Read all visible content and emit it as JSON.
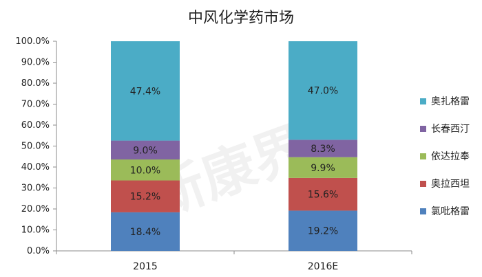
{
  "chart_data": {
    "type": "bar",
    "stacked": true,
    "title": "中风化学药市场",
    "categories": [
      "2015",
      "2016E"
    ],
    "ylim": [
      0,
      100
    ],
    "yticks": [
      "0.0%",
      "10.0%",
      "20.0%",
      "30.0%",
      "40.0%",
      "50.0%",
      "60.0%",
      "70.0%",
      "80.0%",
      "90.0%",
      "100.0%"
    ],
    "series": [
      {
        "name": "氯吡格雷",
        "values": [
          18.4,
          19.2
        ],
        "labels": [
          "18.4%",
          "19.2%"
        ],
        "color": "#4f81bd"
      },
      {
        "name": "奥拉西坦",
        "values": [
          15.2,
          15.6
        ],
        "labels": [
          "15.2%",
          "15.6%"
        ],
        "color": "#c0504d"
      },
      {
        "name": "依达拉奉",
        "values": [
          10.0,
          9.9
        ],
        "labels": [
          "10.0%",
          "9.9%"
        ],
        "color": "#9bbb59"
      },
      {
        "name": "长春西汀",
        "values": [
          9.0,
          8.3
        ],
        "labels": [
          "9.0%",
          "8.3%"
        ],
        "color": "#8064a2"
      },
      {
        "name": "奥扎格雷",
        "values": [
          47.4,
          47.0
        ],
        "labels": [
          "47.4%",
          "47.0%"
        ],
        "color": "#4bacc6"
      }
    ],
    "legend_position": "right",
    "grid": false
  },
  "watermark_text": "新康界"
}
